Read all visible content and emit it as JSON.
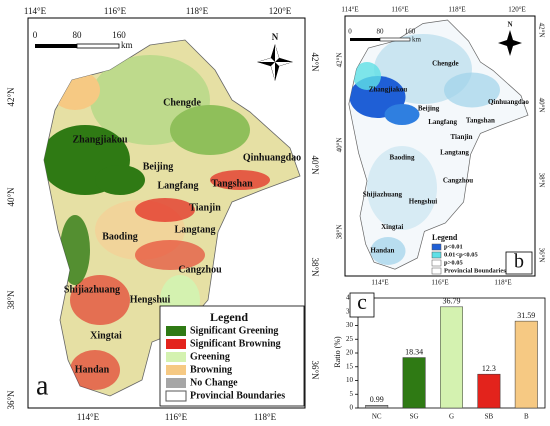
{
  "cities": [
    "Chengde",
    "Zhangjiakou",
    "Beijing",
    "Qinhuangdao",
    "Langfang",
    "Tangshan",
    "Tianjin",
    "Baoding",
    "Langtang",
    "Cangzhou",
    "Shijiazhuang",
    "Hengshui",
    "Xingtai",
    "Handan"
  ],
  "map_a": {
    "label": "a",
    "north": "N",
    "scale": [
      "0",
      "80",
      "160",
      "km"
    ],
    "top_ticks": [
      "114°E",
      "116°E",
      "118°E",
      "120°E"
    ],
    "bottom_ticks": [
      "114°E",
      "116°E",
      "118°E"
    ],
    "left_ticks": [
      "42°N",
      "40°N",
      "38°N",
      "36°N"
    ],
    "right_ticks": [
      "42°N",
      "40°N",
      "38°N",
      "36°N"
    ],
    "legend": {
      "title": "Legend",
      "items": [
        {
          "name": "Significant Greening",
          "color": "#2f7a14"
        },
        {
          "name": "Significant Browning",
          "color": "#e3231c"
        },
        {
          "name": "Greening",
          "color": "#d4f2b0"
        },
        {
          "name": "Browning",
          "color": "#f6c983"
        },
        {
          "name": "No Change",
          "color": "#a6a6a6"
        },
        {
          "name": "Provincial Boundaries",
          "color": "#ffffff"
        }
      ]
    }
  },
  "map_b": {
    "label": "b",
    "north": "N",
    "scale": [
      "0",
      "80",
      "160",
      "km"
    ],
    "top_ticks": [
      "114°E",
      "116°E",
      "118°E",
      "120°E"
    ],
    "bottom_ticks": [
      "114°E",
      "116°E",
      "118°E"
    ],
    "left_ticks": [
      "42°N",
      "40°N",
      "38°N"
    ],
    "right_ticks": [
      "42°N",
      "40°N",
      "38°N",
      "36°N"
    ],
    "legend": {
      "title": "Legend",
      "items": [
        {
          "name": "p<0.01",
          "color": "#1f5fd6"
        },
        {
          "name": "0.01<p<0.05",
          "color": "#5fe0e6"
        },
        {
          "name": "p>0.05",
          "color": "#ffffff"
        },
        {
          "name": "Provincial Boundaries",
          "color": "#ffffff"
        }
      ]
    }
  },
  "chart_data": {
    "type": "bar",
    "label": "c",
    "y_label": "Ratio (%)",
    "categories": [
      "NC",
      "SG",
      "G",
      "SB",
      "B"
    ],
    "values": [
      0.99,
      18.34,
      36.79,
      12.3,
      31.59
    ],
    "colors": [
      "#a6a6a6",
      "#2f7a14",
      "#d4f2b0",
      "#e3231c",
      "#f6c983"
    ],
    "ylim": [
      0,
      40
    ],
    "yticks": [
      0,
      5,
      10,
      15,
      20,
      25,
      30,
      35,
      40
    ]
  }
}
